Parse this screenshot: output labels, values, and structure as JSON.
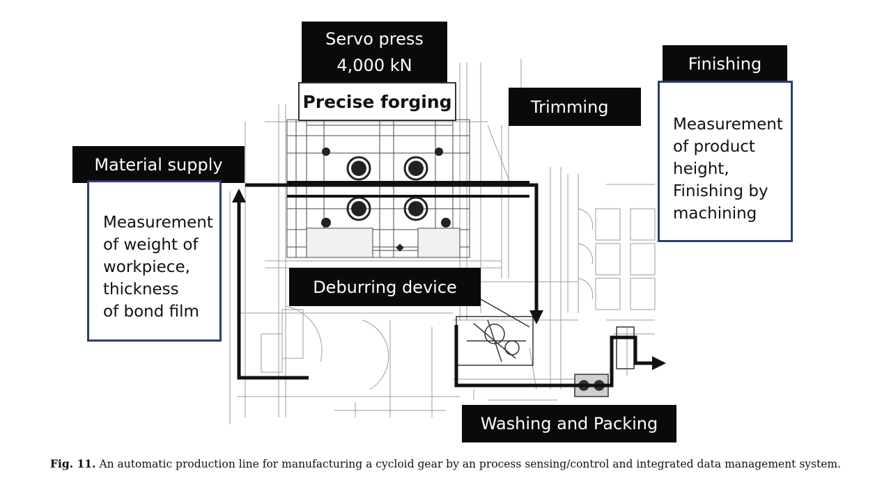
{
  "figure": {
    "labels": {
      "servo_press": "Servo press\n4,000 kN",
      "precise_forging": "Precise forging",
      "trimming": "Trimming",
      "finishing": "Finishing",
      "material_supply": "Material supply",
      "deburring_device": "Deburring device",
      "washing_and_packing": "Washing and Packing"
    },
    "notes": {
      "material_supply": "Measurement\nof weight of\nworkpiece,\nthickness\nof bond film",
      "finishing": "Measurement\nof product\nheight,\nFinishing by\nmachining"
    },
    "colors": {
      "label_bg": "#0a0a0a",
      "label_text": "#ffffff",
      "note_border": "#2d3e6e",
      "flow_line": "#111111",
      "drawing_line": "#8a8a8a"
    }
  },
  "caption": {
    "label": "Fig. 11.",
    "text": "An automatic production line for manufacturing a cycloid gear by an process sensing/control and integrated data management system."
  }
}
